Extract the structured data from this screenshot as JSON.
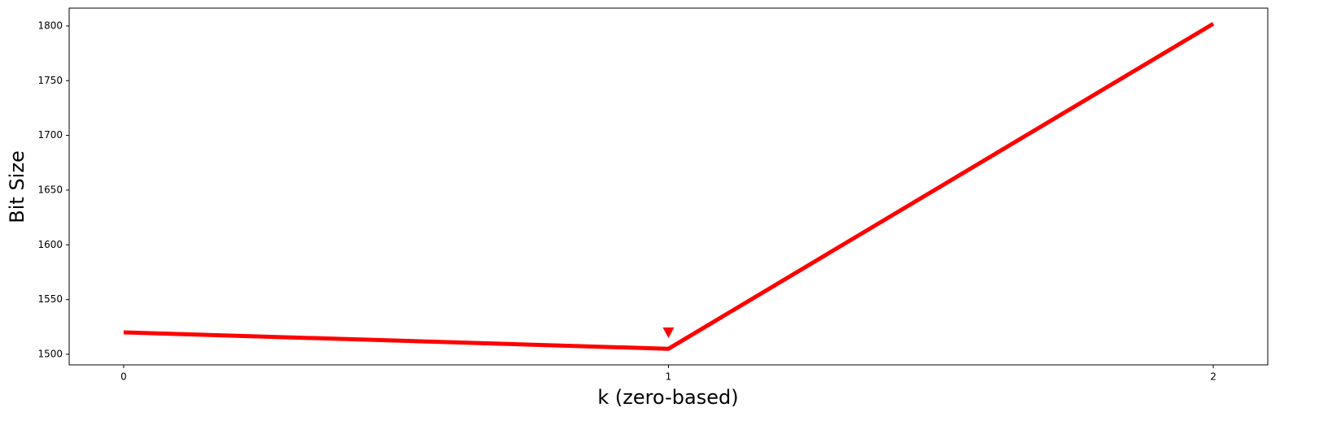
{
  "chart_data": {
    "type": "line",
    "x": [
      0,
      1,
      2
    ],
    "series": [
      {
        "color": "#ff0000",
        "values": [
          1520,
          1505,
          1802
        ]
      }
    ],
    "marker": {
      "x": 1,
      "y": 1520,
      "color": "#ff0000",
      "shape": "triangle-down"
    },
    "x_label": "k (zero-based)",
    "y_label": "Bit Size",
    "xlim": [
      -0.1,
      2.1
    ],
    "ylim": [
      1490.3,
      1816.3
    ],
    "xticks": [
      0,
      1,
      2
    ],
    "yticks": [
      1500,
      1550,
      1600,
      1650,
      1700,
      1750,
      1800
    ],
    "grid": false
  }
}
